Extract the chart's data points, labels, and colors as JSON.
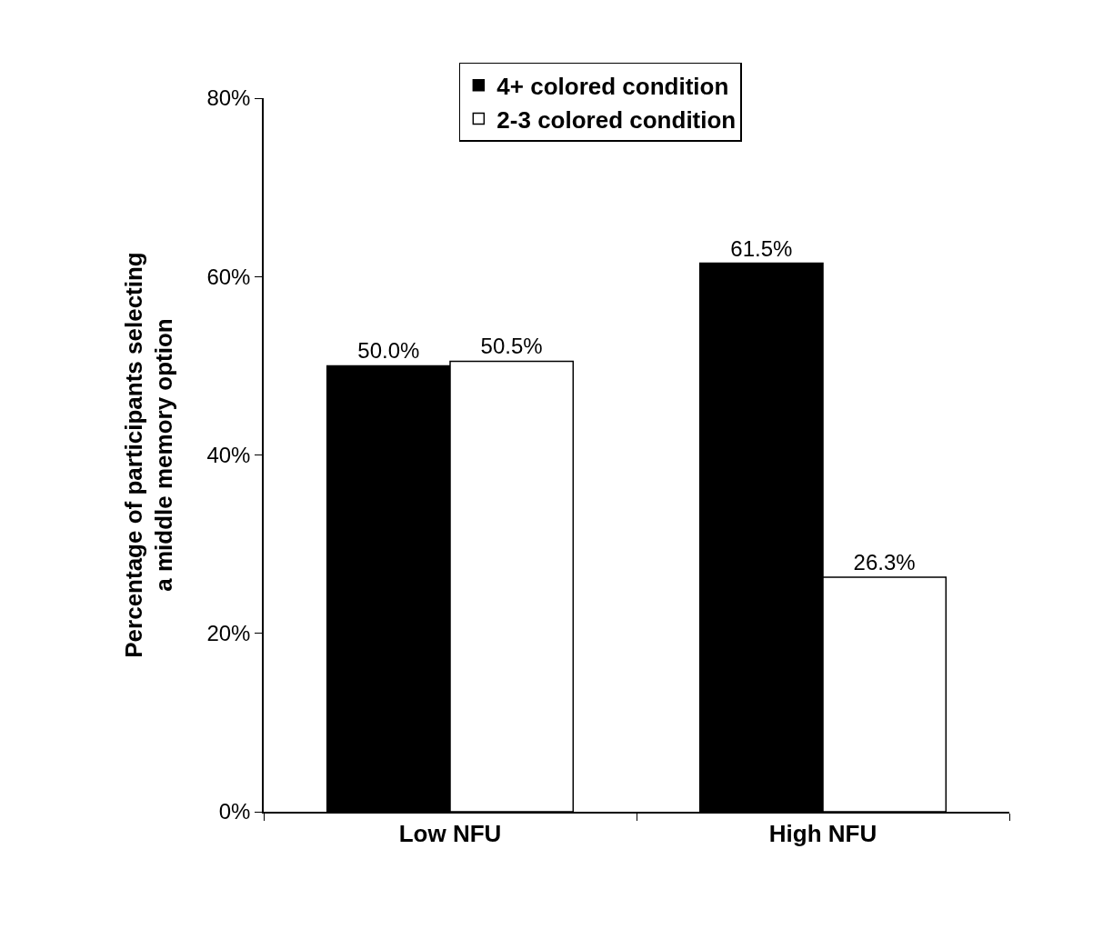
{
  "chart_data": {
    "type": "bar",
    "ylabel": "Percentage of participants selecting\na middle memory option",
    "categories": [
      "Low NFU",
      "High NFU"
    ],
    "series": [
      {
        "name": "4+ colored condition",
        "color": "#000000",
        "values": [
          50.0,
          61.5
        ],
        "value_labels": [
          "50.0%",
          "61.5%"
        ]
      },
      {
        "name": "2-3 colored condition",
        "color": "#ffffff",
        "values": [
          50.5,
          26.3
        ],
        "value_labels": [
          "50.5%",
          "26.3%"
        ]
      }
    ],
    "ylim": [
      0,
      80
    ],
    "yticks": [
      {
        "value": 0,
        "label": "0%"
      },
      {
        "value": 20,
        "label": "20%"
      },
      {
        "value": 40,
        "label": "40%"
      },
      {
        "value": 60,
        "label": "60%"
      },
      {
        "value": 80,
        "label": "80%"
      }
    ],
    "legend": "top right"
  }
}
